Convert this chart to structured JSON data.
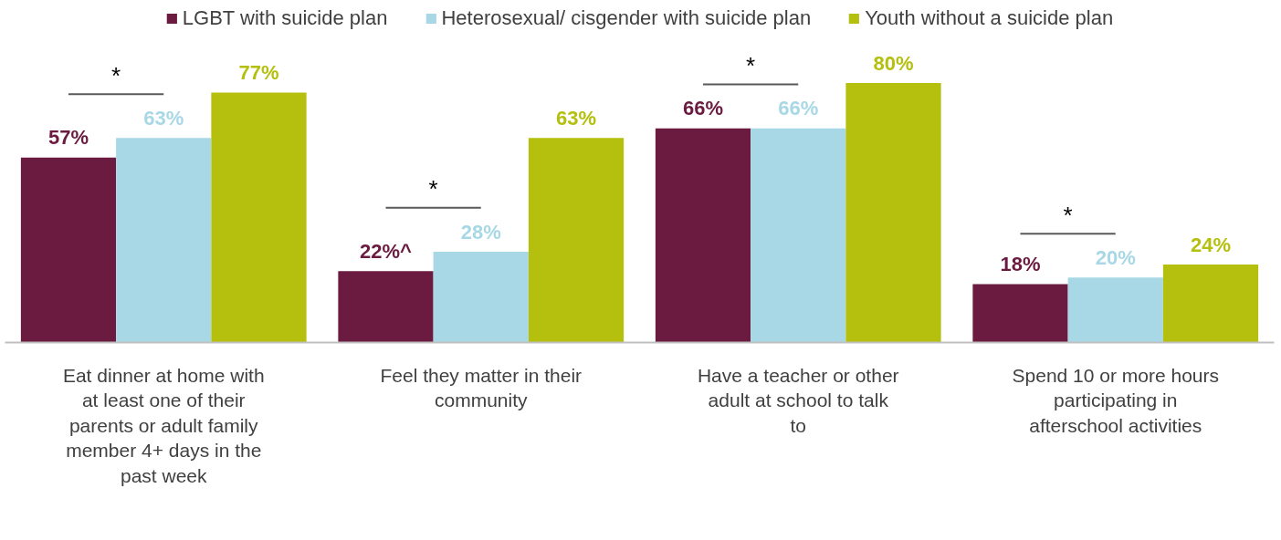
{
  "chart_data": {
    "type": "bar",
    "categories": [
      "Eat dinner at home with at least one of their parents or adult family member 4+ days in the past week",
      "Feel they matter in their community",
      "Have a teacher or other adult at school to talk to",
      "Spend 10 or more hours participating in afterschool activities"
    ],
    "series": [
      {
        "name": "LGBT with suicide plan",
        "color": "#6b1a40",
        "values": [
          57,
          22,
          66,
          18
        ],
        "value_labels": [
          "57%",
          "22%^",
          "66%",
          "18%"
        ]
      },
      {
        "name": "Heterosexual/ cisgender with suicide plan",
        "color": "#a8d8e6",
        "values": [
          63,
          28,
          66,
          20
        ],
        "value_labels": [
          "63%",
          "28%",
          "66%",
          "20%"
        ]
      },
      {
        "name": "Youth without a suicide plan",
        "color": "#b5bf0d",
        "values": [
          77,
          63,
          80,
          24
        ],
        "value_labels": [
          "77%",
          "63%",
          "80%",
          "24%"
        ]
      }
    ],
    "annotations": [
      "*",
      "*",
      "*",
      "*"
    ],
    "legend": "top"
  }
}
